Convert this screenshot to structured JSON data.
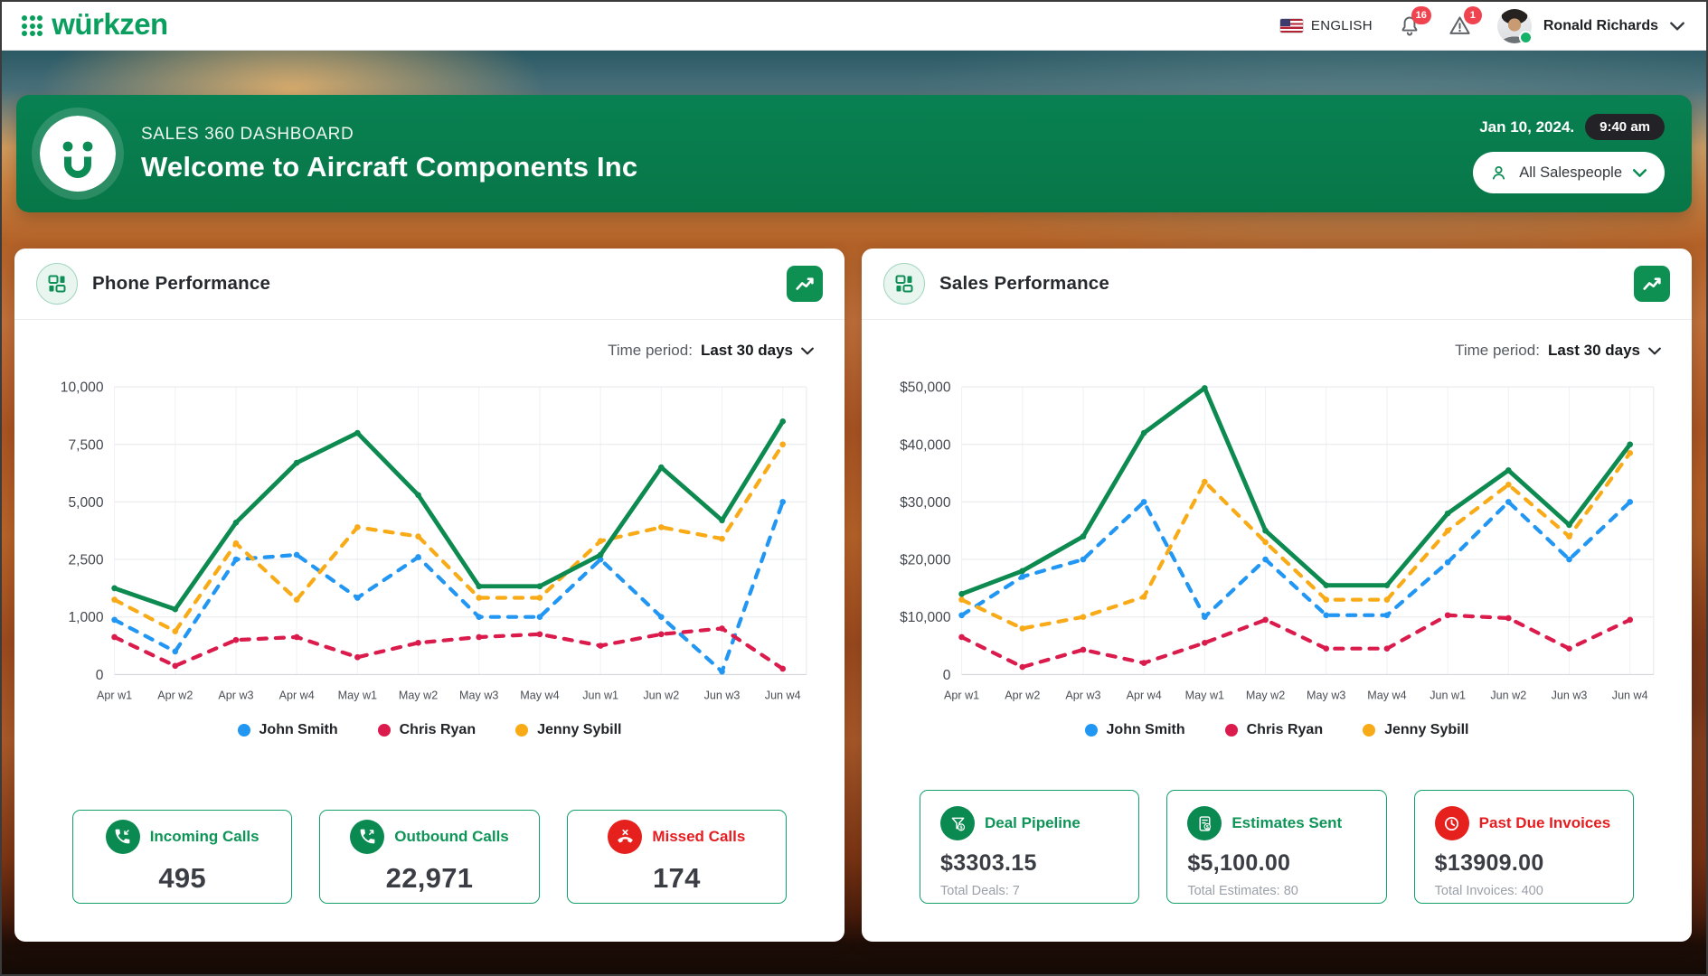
{
  "topbar": {
    "brand": "würkzen",
    "language": "ENGLISH",
    "notifications_count": "16",
    "alerts_count": "1",
    "user_name": "Ronald Richards"
  },
  "banner": {
    "subtitle": "SALES 360 DASHBOARD",
    "title": "Welcome to Aircraft Components Inc",
    "date": "Jan 10, 2024.",
    "time": "9:40 am",
    "salespeople_filter": "All Salespeople"
  },
  "colors": {
    "brand_green": "#0a9f5e",
    "banner_green": "#087c4e",
    "line_green": "#0c8a4f",
    "line_blue": "#2196f3",
    "line_red": "#da1b4c",
    "line_yellow": "#f8ab17",
    "badge_red": "#ef4450",
    "stat_red": "#e5201d"
  },
  "phone": {
    "title": "Phone Performance",
    "time_period_label": "Time period:",
    "time_period_value": "Last 30 days",
    "stats": [
      {
        "label": "Incoming Calls",
        "value": "495",
        "icon": "phone-incoming-icon",
        "color": "green"
      },
      {
        "label": "Outbound Calls",
        "value": "22,971",
        "icon": "phone-outgoing-icon",
        "color": "green"
      },
      {
        "label": "Missed Calls",
        "value": "174",
        "icon": "phone-missed-icon",
        "color": "red"
      }
    ]
  },
  "sales": {
    "title": "Sales Performance",
    "time_period_label": "Time period:",
    "time_period_value": "Last 30 days",
    "stats": [
      {
        "label": "Deal Pipeline",
        "value": "$3303.15",
        "sub": "Total Deals: 7",
        "icon": "funnel-dollar-icon",
        "color": "green"
      },
      {
        "label": "Estimates Sent",
        "value": "$5,100.00",
        "sub": "Total Estimates: 80",
        "icon": "estimate-calculator-icon",
        "color": "green"
      },
      {
        "label": "Past Due Invoices",
        "value": "$13909.00",
        "sub": "Total Invoices: 400",
        "icon": "clock-icon",
        "color": "red"
      }
    ]
  },
  "chart_data": [
    {
      "id": "phone",
      "type": "line",
      "title": "Phone Performance",
      "categories": [
        "Apr w1",
        "Apr w2",
        "Apr w3",
        "Apr w4",
        "May w1",
        "May w2",
        "May w3",
        "May w4",
        "Jun w1",
        "Jun w2",
        "Jun w3",
        "Jun w4"
      ],
      "ylim": [
        0,
        10000
      ],
      "y_scale": "piecewise-even-ticks",
      "y_ticks": [
        0,
        1000,
        2500,
        5000,
        7500,
        10000
      ],
      "y_tick_labels": [
        "0",
        "1,000",
        "2,500",
        "5,000",
        "7,500",
        "10,000"
      ],
      "grid": true,
      "legend_position": "bottom",
      "series": [
        {
          "name": "John Smith",
          "color": "#2196f3",
          "dashed": true,
          "values": [
            950,
            400,
            2500,
            2700,
            1500,
            2600,
            1000,
            1000,
            2500,
            1000,
            50,
            5000
          ]
        },
        {
          "name": "Chris Ryan",
          "color": "#da1b4c",
          "dashed": true,
          "values": [
            650,
            150,
            600,
            650,
            300,
            550,
            650,
            700,
            500,
            700,
            800,
            100
          ]
        },
        {
          "name": "Jenny Sybill",
          "color": "#f8ab17",
          "dashed": true,
          "values": [
            1450,
            750,
            3200,
            1450,
            3900,
            3500,
            1500,
            1500,
            3300,
            3900,
            3400,
            7500
          ]
        },
        {
          "name": "",
          "color": "#0c8a4f",
          "dashed": false,
          "show_in_legend": false,
          "values": [
            1750,
            1200,
            4100,
            6700,
            8000,
            5300,
            1800,
            1800,
            2700,
            6500,
            4200,
            8500
          ]
        }
      ]
    },
    {
      "id": "sales",
      "type": "line",
      "title": "Sales Performance",
      "categories": [
        "Apr w1",
        "Apr w2",
        "Apr w3",
        "Apr w4",
        "May w1",
        "May w2",
        "May w3",
        "May w4",
        "Jun w1",
        "Jun w2",
        "Jun w3",
        "Jun w4"
      ],
      "ylim": [
        0,
        50000
      ],
      "y_scale": "linear",
      "y_ticks": [
        0,
        10000,
        20000,
        30000,
        40000,
        50000
      ],
      "y_tick_labels": [
        "0",
        "$10,000",
        "$20,000",
        "$30,000",
        "$40,000",
        "$50,000"
      ],
      "grid": true,
      "legend_position": "bottom",
      "series": [
        {
          "name": "John Smith",
          "color": "#2196f3",
          "dashed": true,
          "values": [
            10300,
            17000,
            20000,
            30000,
            10000,
            20000,
            10300,
            10300,
            19500,
            30000,
            20000,
            30000
          ]
        },
        {
          "name": "Chris Ryan",
          "color": "#da1b4c",
          "dashed": true,
          "values": [
            6500,
            1300,
            4300,
            2000,
            5500,
            9500,
            4500,
            4500,
            10300,
            9800,
            4500,
            9500
          ]
        },
        {
          "name": "Jenny Sybill",
          "color": "#f8ab17",
          "dashed": true,
          "values": [
            13000,
            8000,
            10000,
            13500,
            33500,
            23000,
            13000,
            13000,
            25000,
            33000,
            24000,
            38500
          ]
        },
        {
          "name": "",
          "color": "#0c8a4f",
          "dashed": false,
          "show_in_legend": false,
          "values": [
            14000,
            18000,
            24000,
            42000,
            49800,
            25000,
            15500,
            15500,
            28000,
            35500,
            26000,
            40000
          ]
        }
      ]
    }
  ]
}
